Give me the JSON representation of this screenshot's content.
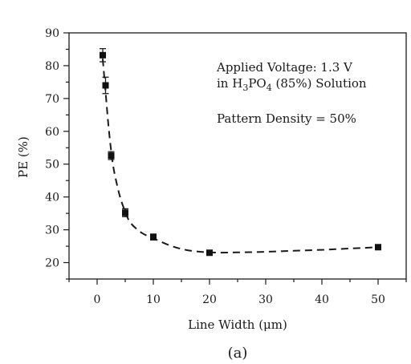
{
  "chart_data": {
    "type": "scatter",
    "xlabel": "Line Width (μm)",
    "ylabel": "PE (%)",
    "xlim": [
      -5,
      55
    ],
    "ylim": [
      15,
      90
    ],
    "xticks": [
      0,
      10,
      20,
      30,
      40,
      50
    ],
    "yticks": [
      20,
      30,
      40,
      50,
      60,
      70,
      80,
      90
    ],
    "grid": false,
    "series": [
      {
        "marker": "square",
        "color": "#111111",
        "x": [
          1,
          1.5,
          2.5,
          5,
          10,
          20,
          50
        ],
        "y": [
          83.2,
          74,
          52.6,
          35.2,
          27.8,
          23,
          24.7
        ],
        "error": [
          2,
          2.5,
          1.2,
          1.2,
          0.9,
          0.5,
          0.5
        ]
      }
    ],
    "fit_curve": {
      "style": "dashed",
      "x": [
        1,
        1.5,
        2,
        2.5,
        3,
        4,
        5,
        6,
        8,
        10,
        13,
        16,
        20,
        25,
        30,
        35,
        40,
        45,
        50
      ],
      "y": [
        82,
        72,
        62,
        54,
        48,
        40.5,
        35.5,
        32,
        29,
        27.4,
        25.2,
        23.8,
        23.1,
        23.1,
        23.3,
        23.6,
        23.9,
        24.3,
        24.7
      ]
    },
    "annotations": [
      {
        "text": "Applied Voltage: 1.3 V"
      },
      {
        "prefix": "in H",
        "sub1": "3",
        "mid": "PO",
        "sub2": "4",
        "suffix": " (85%) Solution"
      },
      {
        "text": "Pattern Density = 50%"
      }
    ],
    "caption": "(a)"
  }
}
